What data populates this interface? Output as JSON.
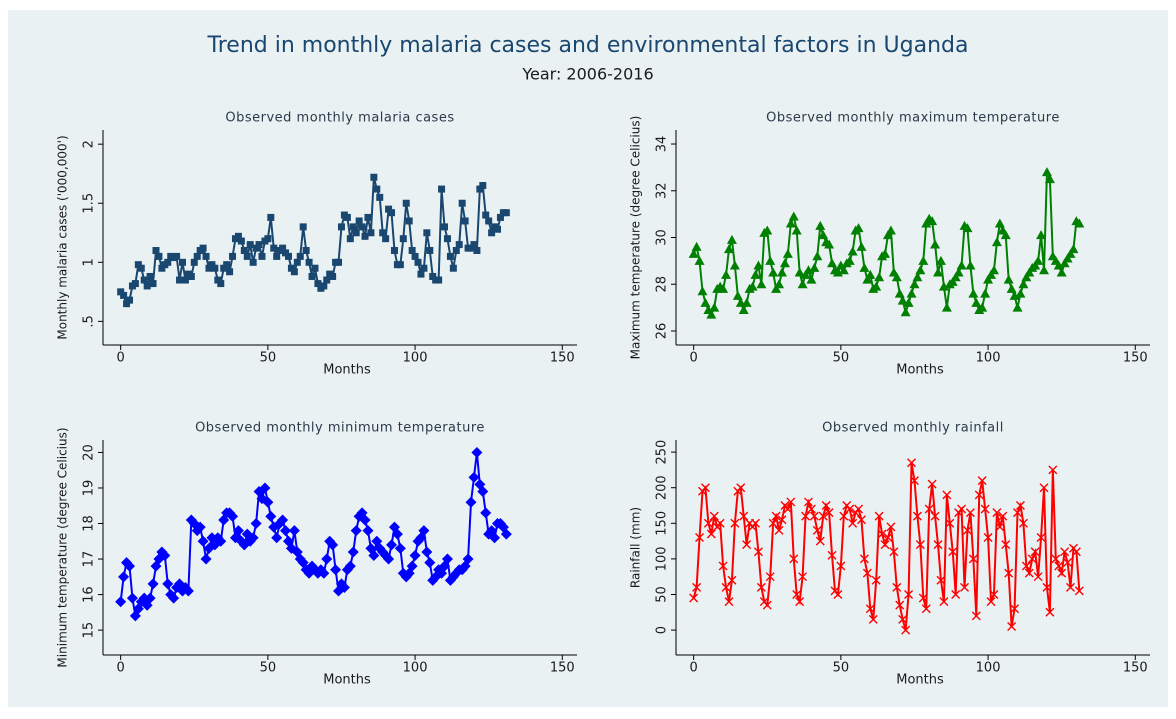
{
  "title": "Trend in monthly malaria cases and environmental factors in Uganda",
  "subtitle": "Year: 2006-2016",
  "chart_data": [
    {
      "type": "line",
      "title": "Observed monthly malaria cases",
      "x_label": "Months",
      "y_label": "Monthly malaria cases ('000,000')",
      "color": "#1a476f",
      "marker": "square",
      "xlim": [
        -6,
        155
      ],
      "xticks": [
        0,
        50,
        100,
        150
      ],
      "ylim": [
        0.3,
        2.12
      ],
      "yticks": [
        {
          "value": 0.5,
          "label": ".5"
        },
        1,
        1.5,
        2
      ],
      "x": [
        0,
        1,
        2,
        3,
        4,
        5,
        6,
        7,
        8,
        9,
        10,
        11,
        12,
        13,
        14,
        15,
        16,
        17,
        18,
        19,
        20,
        21,
        22,
        23,
        24,
        25,
        26,
        27,
        28,
        29,
        30,
        31,
        32,
        33,
        34,
        35,
        36,
        37,
        38,
        39,
        40,
        41,
        42,
        43,
        44,
        45,
        46,
        47,
        48,
        49,
        50,
        51,
        52,
        53,
        54,
        55,
        56,
        57,
        58,
        59,
        60,
        61,
        62,
        63,
        64,
        65,
        66,
        67,
        68,
        69,
        70,
        71,
        72,
        73,
        74,
        75,
        76,
        77,
        78,
        79,
        80,
        81,
        82,
        83,
        84,
        85,
        86,
        87,
        88,
        89,
        90,
        91,
        92,
        93,
        94,
        95,
        96,
        97,
        98,
        99,
        100,
        101,
        102,
        103,
        104,
        105,
        106,
        107,
        108,
        109,
        110,
        111,
        112,
        113,
        114,
        115,
        116,
        117,
        118,
        119,
        120,
        121,
        122,
        123,
        124,
        125,
        126,
        127,
        128,
        129,
        130,
        131
      ],
      "values": [
        0.75,
        0.72,
        0.65,
        0.68,
        0.8,
        0.82,
        0.98,
        0.95,
        0.85,
        0.8,
        0.88,
        0.82,
        1.1,
        1.05,
        0.95,
        0.98,
        1.0,
        1.05,
        1.04,
        1.05,
        0.85,
        1.0,
        0.85,
        0.9,
        0.88,
        1.0,
        1.05,
        1.1,
        1.12,
        1.05,
        0.95,
        0.98,
        0.95,
        0.85,
        0.82,
        0.95,
        0.98,
        0.92,
        1.05,
        1.2,
        1.22,
        1.18,
        1.1,
        1.05,
        1.15,
        1.0,
        1.12,
        1.15,
        1.05,
        1.18,
        1.2,
        1.38,
        1.12,
        1.05,
        1.1,
        1.12,
        1.08,
        1.05,
        0.95,
        0.92,
        1.0,
        1.05,
        1.3,
        1.1,
        1.0,
        0.88,
        0.95,
        0.82,
        0.78,
        0.8,
        0.85,
        0.9,
        0.88,
        1.0,
        1.0,
        1.3,
        1.4,
        1.38,
        1.2,
        1.3,
        1.25,
        1.35,
        1.3,
        1.22,
        1.38,
        1.25,
        1.72,
        1.62,
        1.55,
        1.25,
        1.2,
        1.45,
        1.42,
        1.1,
        0.98,
        0.98,
        1.2,
        1.5,
        1.35,
        1.1,
        1.05,
        1.0,
        0.9,
        0.95,
        1.25,
        1.1,
        0.88,
        0.85,
        0.85,
        1.62,
        1.3,
        1.2,
        1.05,
        0.95,
        1.1,
        1.15,
        1.5,
        1.35,
        1.12,
        1.12,
        1.15,
        1.1,
        1.62,
        1.65,
        1.4,
        1.35,
        1.25,
        1.3,
        1.28,
        1.38,
        1.42,
        1.42
      ]
    },
    {
      "type": "line",
      "title": "Observed monthly maximum temperature",
      "x_label": "Months",
      "y_label": "Maximum temperature (degree Celicius)",
      "color": "#008000",
      "marker": "triangle",
      "xlim": [
        -6,
        155
      ],
      "xticks": [
        0,
        50,
        100,
        150
      ],
      "ylim": [
        25.4,
        34.6
      ],
      "yticks": [
        26,
        28,
        30,
        32,
        34
      ],
      "x": [
        0,
        1,
        2,
        3,
        4,
        5,
        6,
        7,
        8,
        9,
        10,
        11,
        12,
        13,
        14,
        15,
        16,
        17,
        18,
        19,
        20,
        21,
        22,
        23,
        24,
        25,
        26,
        27,
        28,
        29,
        30,
        31,
        32,
        33,
        34,
        35,
        36,
        37,
        38,
        39,
        40,
        41,
        42,
        43,
        44,
        45,
        46,
        47,
        48,
        49,
        50,
        51,
        52,
        53,
        54,
        55,
        56,
        57,
        58,
        59,
        60,
        61,
        62,
        63,
        64,
        65,
        66,
        67,
        68,
        69,
        70,
        71,
        72,
        73,
        74,
        75,
        76,
        77,
        78,
        79,
        80,
        81,
        82,
        83,
        84,
        85,
        86,
        87,
        88,
        89,
        90,
        91,
        92,
        93,
        94,
        95,
        96,
        97,
        98,
        99,
        100,
        101,
        102,
        103,
        104,
        105,
        106,
        107,
        108,
        109,
        110,
        111,
        112,
        113,
        114,
        115,
        116,
        117,
        118,
        119,
        120,
        121,
        122,
        123,
        124,
        125,
        126,
        127,
        128,
        129,
        130,
        131
      ],
      "values": [
        29.3,
        29.6,
        29.0,
        27.7,
        27.2,
        26.9,
        26.7,
        27.0,
        27.8,
        27.9,
        27.8,
        28.4,
        29.5,
        29.9,
        28.8,
        27.5,
        27.2,
        26.9,
        27.2,
        27.8,
        27.9,
        28.4,
        28.8,
        28.0,
        30.2,
        30.3,
        29.0,
        28.5,
        27.8,
        28.0,
        28.5,
        28.9,
        29.3,
        30.6,
        30.9,
        30.3,
        28.5,
        28.0,
        28.4,
        28.6,
        28.2,
        28.7,
        29.2,
        30.5,
        30.1,
        29.8,
        29.7,
        28.9,
        28.6,
        28.5,
        28.8,
        28.6,
        28.9,
        29.0,
        29.4,
        30.3,
        30.4,
        29.6,
        28.7,
        28.2,
        28.4,
        27.8,
        27.9,
        28.3,
        29.2,
        29.3,
        30.1,
        30.3,
        28.5,
        28.3,
        27.6,
        27.3,
        26.8,
        27.2,
        27.6,
        28.0,
        28.3,
        28.6,
        29.0,
        30.6,
        30.8,
        30.7,
        29.7,
        28.5,
        29.0,
        27.9,
        27.0,
        28.0,
        28.1,
        28.3,
        28.5,
        28.8,
        30.5,
        30.4,
        28.8,
        27.6,
        27.2,
        26.9,
        27.0,
        27.6,
        28.2,
        28.4,
        28.6,
        29.8,
        30.6,
        30.3,
        30.1,
        28.2,
        27.8,
        27.5,
        27.0,
        27.6,
        28.0,
        28.3,
        28.5,
        28.7,
        28.8,
        29.0,
        30.1,
        28.6,
        32.8,
        32.5,
        29.2,
        29.0,
        28.8,
        28.5,
        28.9,
        29.1,
        29.3,
        29.5,
        30.7,
        30.6
      ]
    },
    {
      "type": "line",
      "title": "Observed monthly minimum temperature",
      "x_label": "Months",
      "y_label": "Minimum temperature (degree Celicius)",
      "color": "#0000ff",
      "marker": "diamond",
      "xlim": [
        -6,
        155
      ],
      "xticks": [
        0,
        50,
        100,
        150
      ],
      "ylim": [
        14.3,
        20.35
      ],
      "yticks": [
        15,
        16,
        17,
        18,
        19,
        20
      ],
      "x": [
        0,
        1,
        2,
        3,
        4,
        5,
        6,
        7,
        8,
        9,
        10,
        11,
        12,
        13,
        14,
        15,
        16,
        17,
        18,
        19,
        20,
        21,
        22,
        23,
        24,
        25,
        26,
        27,
        28,
        29,
        30,
        31,
        32,
        33,
        34,
        35,
        36,
        37,
        38,
        39,
        40,
        41,
        42,
        43,
        44,
        45,
        46,
        47,
        48,
        49,
        50,
        51,
        52,
        53,
        54,
        55,
        56,
        57,
        58,
        59,
        60,
        61,
        62,
        63,
        64,
        65,
        66,
        67,
        68,
        69,
        70,
        71,
        72,
        73,
        74,
        75,
        76,
        77,
        78,
        79,
        80,
        81,
        82,
        83,
        84,
        85,
        86,
        87,
        88,
        89,
        90,
        91,
        92,
        93,
        94,
        95,
        96,
        97,
        98,
        99,
        100,
        101,
        102,
        103,
        104,
        105,
        106,
        107,
        108,
        109,
        110,
        111,
        112,
        113,
        114,
        115,
        116,
        117,
        118,
        119,
        120,
        121,
        122,
        123,
        124,
        125,
        126,
        127,
        128,
        129,
        130,
        131
      ],
      "values": [
        15.8,
        16.5,
        16.9,
        16.8,
        15.9,
        15.4,
        15.6,
        15.8,
        15.9,
        15.7,
        15.9,
        16.3,
        16.8,
        17.0,
        17.2,
        17.1,
        16.3,
        16.0,
        15.9,
        16.2,
        16.3,
        16.1,
        16.2,
        16.1,
        18.1,
        18.0,
        17.8,
        17.9,
        17.5,
        17.0,
        17.3,
        17.6,
        17.4,
        17.6,
        17.5,
        18.1,
        18.3,
        18.3,
        18.2,
        17.6,
        17.8,
        17.5,
        17.4,
        17.7,
        17.5,
        17.6,
        18.0,
        18.9,
        18.7,
        19.0,
        18.6,
        18.2,
        17.9,
        17.6,
        18.0,
        18.1,
        17.8,
        17.5,
        17.3,
        17.8,
        17.2,
        17.0,
        16.9,
        16.7,
        16.6,
        16.8,
        16.7,
        16.6,
        16.7,
        16.6,
        17.0,
        17.5,
        17.4,
        16.7,
        16.1,
        16.3,
        16.2,
        16.7,
        16.8,
        17.2,
        17.8,
        18.2,
        18.3,
        18.1,
        17.8,
        17.3,
        17.1,
        17.5,
        17.3,
        17.2,
        17.1,
        17.0,
        17.4,
        17.9,
        17.7,
        17.3,
        16.6,
        16.5,
        16.6,
        16.8,
        17.1,
        17.5,
        17.6,
        17.8,
        17.2,
        16.9,
        16.4,
        16.5,
        16.7,
        16.6,
        16.8,
        17.0,
        16.4,
        16.5,
        16.6,
        16.7,
        16.7,
        16.8,
        17.0,
        18.6,
        19.3,
        20.0,
        19.1,
        18.9,
        18.3,
        17.7,
        17.8,
        17.6,
        18.0,
        18.0,
        17.9,
        17.7
      ]
    },
    {
      "type": "line",
      "title": "Observed monthly rainfall",
      "x_label": "Months",
      "y_label": "Rainfall (mm)",
      "color": "#ff0000",
      "marker": "x",
      "xlim": [
        -6,
        155
      ],
      "xticks": [
        0,
        50,
        100,
        150
      ],
      "ylim": [
        -35,
        267
      ],
      "yticks": [
        0,
        50,
        100,
        150,
        200,
        250
      ],
      "x": [
        0,
        1,
        2,
        3,
        4,
        5,
        6,
        7,
        8,
        9,
        10,
        11,
        12,
        13,
        14,
        15,
        16,
        17,
        18,
        19,
        20,
        21,
        22,
        23,
        24,
        25,
        26,
        27,
        28,
        29,
        30,
        31,
        32,
        33,
        34,
        35,
        36,
        37,
        38,
        39,
        40,
        41,
        42,
        43,
        44,
        45,
        46,
        47,
        48,
        49,
        50,
        51,
        52,
        53,
        54,
        55,
        56,
        57,
        58,
        59,
        60,
        61,
        62,
        63,
        64,
        65,
        66,
        67,
        68,
        69,
        70,
        71,
        72,
        73,
        74,
        75,
        76,
        77,
        78,
        79,
        80,
        81,
        82,
        83,
        84,
        85,
        86,
        87,
        88,
        89,
        90,
        91,
        92,
        93,
        94,
        95,
        96,
        97,
        98,
        99,
        100,
        101,
        102,
        103,
        104,
        105,
        106,
        107,
        108,
        109,
        110,
        111,
        112,
        113,
        114,
        115,
        116,
        117,
        118,
        119,
        120,
        121,
        122,
        123,
        124,
        125,
        126,
        127,
        128,
        129,
        130,
        131
      ],
      "values": [
        45,
        60,
        130,
        195,
        200,
        150,
        135,
        160,
        145,
        150,
        90,
        60,
        40,
        70,
        150,
        195,
        200,
        160,
        120,
        150,
        145,
        150,
        110,
        60,
        40,
        35,
        75,
        150,
        160,
        140,
        155,
        175,
        170,
        180,
        100,
        50,
        40,
        75,
        160,
        180,
        170,
        160,
        140,
        125,
        160,
        175,
        165,
        105,
        55,
        50,
        90,
        160,
        175,
        170,
        150,
        165,
        170,
        155,
        100,
        80,
        30,
        15,
        70,
        160,
        135,
        120,
        130,
        145,
        110,
        60,
        35,
        15,
        0,
        50,
        235,
        210,
        160,
        120,
        45,
        30,
        170,
        205,
        160,
        120,
        70,
        40,
        190,
        150,
        110,
        50,
        165,
        170,
        60,
        140,
        165,
        100,
        20,
        190,
        210,
        170,
        130,
        40,
        50,
        165,
        145,
        160,
        120,
        80,
        5,
        30,
        165,
        175,
        150,
        90,
        80,
        100,
        110,
        75,
        130,
        200,
        60,
        25,
        225,
        100,
        90,
        80,
        110,
        95,
        60,
        115,
        110,
        55
      ]
    }
  ]
}
